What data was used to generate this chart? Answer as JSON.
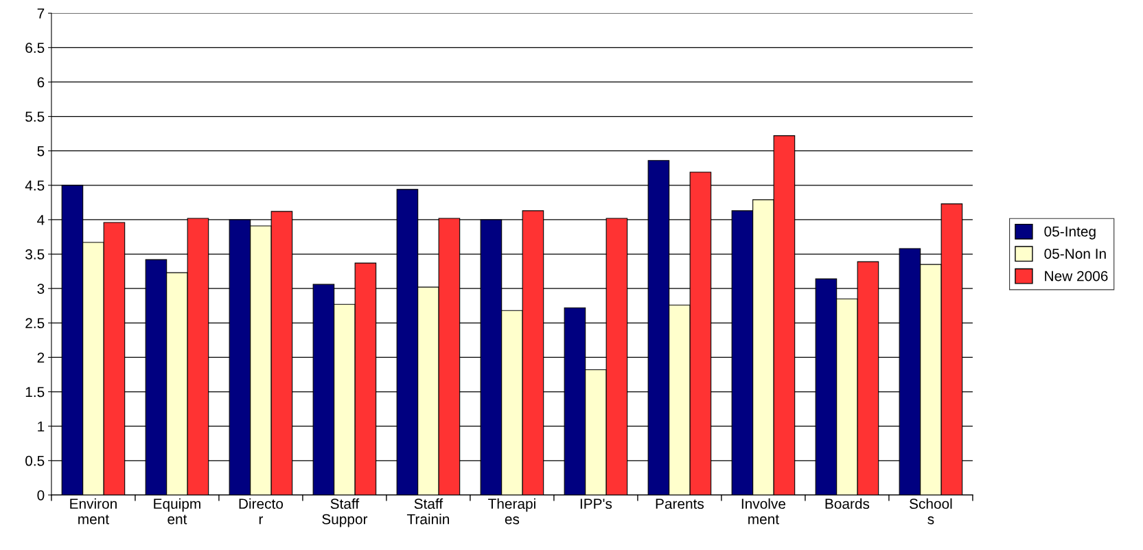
{
  "chart_data": {
    "type": "bar",
    "categories": [
      "Environ\nment",
      "Equipm\nent",
      "Directo\nr",
      "Staff\nSuppor",
      "Staff\nTrainin",
      "Therapi\nes",
      "IPP's",
      "Parents",
      "Involve\nment",
      "Boards",
      "School\ns"
    ],
    "series": [
      {
        "name": "05-Integ",
        "color": "#000080",
        "values": [
          4.5,
          3.42,
          4.0,
          3.06,
          4.44,
          4.0,
          2.72,
          4.86,
          4.13,
          3.14,
          3.58
        ]
      },
      {
        "name": "05-Non In",
        "color": "#ffffcc",
        "values": [
          3.67,
          3.23,
          3.91,
          2.77,
          3.02,
          2.68,
          1.82,
          2.76,
          4.29,
          2.85,
          3.35
        ]
      },
      {
        "name": "New 2006",
        "color": "#ff3333",
        "values": [
          3.96,
          4.02,
          4.12,
          3.37,
          4.02,
          4.13,
          4.02,
          4.69,
          5.22,
          3.39,
          4.23
        ]
      }
    ],
    "ylim": [
      0,
      7
    ],
    "yticks": [
      0,
      0.5,
      1,
      1.5,
      2,
      2.5,
      3,
      3.5,
      4,
      4.5,
      5,
      5.5,
      6,
      6.5,
      7
    ],
    "grid": "y",
    "legend": "right"
  }
}
